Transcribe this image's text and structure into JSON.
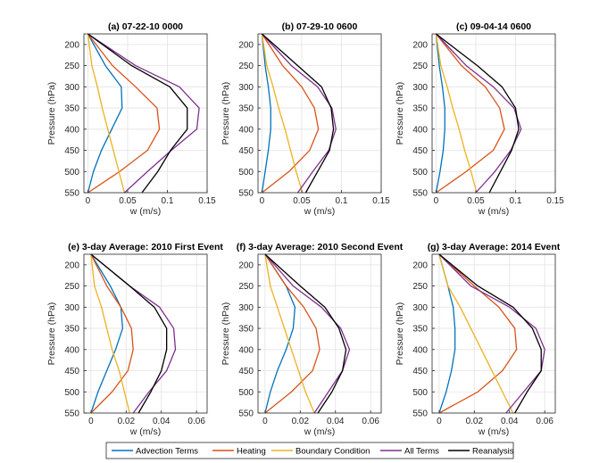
{
  "figure": {
    "ylabel": "Pressure (hPa)",
    "xlabel": "w (m/s)",
    "legend": [
      {
        "name": "Advection Terms",
        "color": "#0072BD"
      },
      {
        "name": "Heating",
        "color": "#D95319"
      },
      {
        "name": "Boundary Condition",
        "color": "#EDB120"
      },
      {
        "name": "All Terms",
        "color": "#7E2F8E"
      },
      {
        "name": "Reanalysis",
        "color": "#000000"
      }
    ]
  },
  "chart_data": [
    {
      "type": "line",
      "title": "(a) 07-22-10 0000",
      "xlabel": "w (m/s)",
      "ylabel": "Pressure (hPa)",
      "xlim": [
        -0.005,
        0.15
      ],
      "ylim": [
        550,
        175
      ],
      "xticks": [
        0,
        0.05,
        0.1,
        0.15
      ],
      "xtick_labels": [
        "0",
        "0.05",
        "0.1",
        "0.15"
      ],
      "yticks": [
        200,
        250,
        300,
        350,
        400,
        450,
        500,
        550
      ],
      "y": [
        175,
        250,
        300,
        350,
        400,
        450,
        500,
        550
      ],
      "series": [
        {
          "name": "Advection Terms",
          "values": [
            0,
            0.022,
            0.042,
            0.043,
            0.03,
            0.017,
            0.007,
            0
          ]
        },
        {
          "name": "Heating",
          "values": [
            0,
            0.031,
            0.06,
            0.087,
            0.09,
            0.075,
            0.04,
            0
          ]
        },
        {
          "name": "Boundary Condition",
          "values": [
            0,
            0.005,
            0.012,
            0.018,
            0.025,
            0.032,
            0.039,
            0.046
          ]
        },
        {
          "name": "All Terms",
          "values": [
            0,
            0.06,
            0.115,
            0.14,
            0.137,
            0.105,
            0.075,
            0.046
          ]
        },
        {
          "name": "Reanalysis",
          "values": [
            0,
            0.055,
            0.103,
            0.125,
            0.125,
            0.104,
            0.088,
            0.068
          ]
        }
      ]
    },
    {
      "type": "line",
      "title": "(b) 07-29-10 0600",
      "xlabel": "w (m/s)",
      "ylabel": "Pressure (hPa)",
      "xlim": [
        -0.005,
        0.15
      ],
      "ylim": [
        550,
        175
      ],
      "xticks": [
        0,
        0.05,
        0.1,
        0.15
      ],
      "xtick_labels": [
        "0",
        "0.05",
        "0.1",
        "0.15"
      ],
      "yticks": [
        200,
        250,
        300,
        350,
        400,
        450,
        500,
        550
      ],
      "y": [
        175,
        250,
        300,
        350,
        400,
        450,
        500,
        550
      ],
      "series": [
        {
          "name": "Advection Terms",
          "values": [
            0,
            0.004,
            0.008,
            0.011,
            0.011,
            0.008,
            0.004,
            0
          ]
        },
        {
          "name": "Heating",
          "values": [
            0,
            0.026,
            0.05,
            0.066,
            0.071,
            0.06,
            0.034,
            0
          ]
        },
        {
          "name": "Boundary Condition",
          "values": [
            0,
            0.006,
            0.014,
            0.021,
            0.029,
            0.036,
            0.043,
            0.051
          ]
        },
        {
          "name": "All Terms",
          "values": [
            0,
            0.037,
            0.07,
            0.088,
            0.093,
            0.084,
            0.064,
            0.045
          ]
        },
        {
          "name": "Reanalysis",
          "values": [
            0,
            0.045,
            0.075,
            0.087,
            0.09,
            0.085,
            0.07,
            0.055
          ]
        }
      ]
    },
    {
      "type": "line",
      "title": "(c) 09-04-14 0600",
      "xlabel": "w (m/s)",
      "ylabel": "Pressure (hPa)",
      "xlim": [
        -0.005,
        0.15
      ],
      "ylim": [
        550,
        175
      ],
      "xticks": [
        0,
        0.05,
        0.1,
        0.15
      ],
      "xtick_labels": [
        "0",
        "0.05",
        "0.1",
        "0.15"
      ],
      "yticks": [
        200,
        250,
        300,
        350,
        400,
        450,
        500,
        550
      ],
      "y": [
        175,
        250,
        300,
        350,
        400,
        450,
        500,
        550
      ],
      "series": [
        {
          "name": "Advection Terms",
          "values": [
            0,
            0.004,
            0.008,
            0.011,
            0.011,
            0.009,
            0.005,
            0
          ]
        },
        {
          "name": "Heating",
          "values": [
            0,
            0.032,
            0.062,
            0.08,
            0.086,
            0.072,
            0.038,
            0
          ]
        },
        {
          "name": "Boundary Condition",
          "values": [
            0,
            0.006,
            0.014,
            0.021,
            0.029,
            0.036,
            0.044,
            0.051
          ]
        },
        {
          "name": "All Terms",
          "values": [
            0,
            0.038,
            0.072,
            0.098,
            0.107,
            0.094,
            0.074,
            0.05
          ]
        },
        {
          "name": "Reanalysis",
          "values": [
            0,
            0.052,
            0.083,
            0.1,
            0.104,
            0.095,
            0.081,
            0.067
          ]
        }
      ]
    },
    {
      "type": "line",
      "title": "(e) 3-day Average: 2010 First Event",
      "xlabel": "w (m/s)",
      "ylabel": "Pressure (hPa)",
      "xlim": [
        -0.004,
        0.066
      ],
      "ylim": [
        550,
        175
      ],
      "xticks": [
        0,
        0.02,
        0.04,
        0.06
      ],
      "xtick_labels": [
        "0",
        "0.02",
        "0.04",
        "0.06"
      ],
      "yticks": [
        200,
        250,
        300,
        350,
        400,
        450,
        500,
        550
      ],
      "y": [
        175,
        250,
        300,
        350,
        400,
        450,
        500,
        550
      ],
      "series": [
        {
          "name": "Advection Terms",
          "values": [
            0,
            0.011,
            0.017,
            0.018,
            0.014,
            0.009,
            0.004,
            0
          ]
        },
        {
          "name": "Heating",
          "values": [
            0,
            0.009,
            0.017,
            0.023,
            0.024,
            0.021,
            0.012,
            0
          ]
        },
        {
          "name": "Boundary Condition",
          "values": [
            0,
            0.002,
            0.006,
            0.009,
            0.012,
            0.016,
            0.019,
            0.022
          ]
        },
        {
          "name": "All Terms",
          "values": [
            0,
            0.022,
            0.039,
            0.047,
            0.048,
            0.043,
            0.033,
            0.024
          ]
        },
        {
          "name": "Reanalysis",
          "values": [
            0,
            0.022,
            0.036,
            0.043,
            0.043,
            0.04,
            0.034,
            0.027
          ]
        }
      ]
    },
    {
      "type": "line",
      "title": "(f) 3-day Average: 2010 Second Event",
      "xlabel": "w (m/s)",
      "ylabel": "Pressure (hPa)",
      "xlim": [
        -0.004,
        0.066
      ],
      "ylim": [
        550,
        175
      ],
      "xticks": [
        0,
        0.02,
        0.04,
        0.06
      ],
      "xtick_labels": [
        "0",
        "0.02",
        "0.04",
        "0.06"
      ],
      "yticks": [
        200,
        250,
        300,
        350,
        400,
        450,
        500,
        550
      ],
      "y": [
        175,
        250,
        300,
        350,
        400,
        450,
        500,
        550
      ],
      "series": [
        {
          "name": "Advection Terms",
          "values": [
            0,
            0.012,
            0.017,
            0.016,
            0.012,
            0.007,
            0.003,
            0
          ]
        },
        {
          "name": "Heating",
          "values": [
            0,
            0.012,
            0.022,
            0.029,
            0.031,
            0.027,
            0.015,
            0
          ]
        },
        {
          "name": "Boundary Condition",
          "values": [
            0,
            0.003,
            0.007,
            0.011,
            0.015,
            0.019,
            0.023,
            0.028
          ]
        },
        {
          "name": "All Terms",
          "values": [
            0,
            0.016,
            0.032,
            0.043,
            0.048,
            0.044,
            0.036,
            0.028
          ]
        },
        {
          "name": "Reanalysis",
          "values": [
            0,
            0.02,
            0.034,
            0.042,
            0.046,
            0.044,
            0.038,
            0.03
          ]
        }
      ]
    },
    {
      "type": "line",
      "title": "(g) 3-day Average: 2014 Event",
      "xlabel": "w (m/s)",
      "ylabel": "Pressure (hPa)",
      "xlim": [
        -0.004,
        0.066
      ],
      "ylim": [
        550,
        175
      ],
      "xticks": [
        0,
        0.02,
        0.04,
        0.06
      ],
      "xtick_labels": [
        "0",
        "0.02",
        "0.04",
        "0.06"
      ],
      "yticks": [
        200,
        250,
        300,
        350,
        400,
        450,
        500,
        550
      ],
      "y": [
        175,
        250,
        300,
        350,
        400,
        450,
        500,
        550
      ],
      "series": [
        {
          "name": "Advection Terms",
          "values": [
            0,
            0.005,
            0.008,
            0.009,
            0.009,
            0.007,
            0.004,
            0
          ]
        },
        {
          "name": "Heating",
          "values": [
            0,
            0.02,
            0.034,
            0.043,
            0.044,
            0.036,
            0.022,
            0
          ]
        },
        {
          "name": "Boundary Condition",
          "values": [
            0,
            0.005,
            0.012,
            0.018,
            0.024,
            0.03,
            0.036,
            0.042
          ]
        },
        {
          "name": "All Terms",
          "values": [
            0,
            0.018,
            0.04,
            0.055,
            0.06,
            0.058,
            0.048,
            0.038
          ]
        },
        {
          "name": "Reanalysis",
          "values": [
            0,
            0.022,
            0.042,
            0.053,
            0.058,
            0.058,
            0.05,
            0.043
          ]
        }
      ]
    }
  ]
}
